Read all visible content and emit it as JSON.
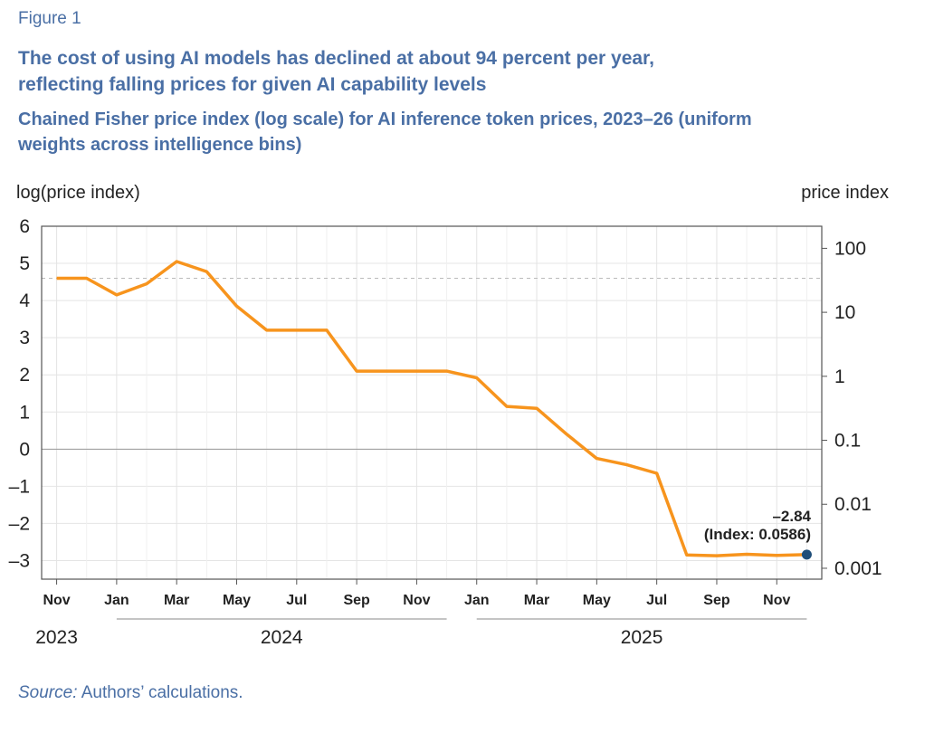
{
  "figure_label": "Figure 1",
  "title": "The cost of using AI models has declined at about 94 percent per year, reflecting falling  prices for given AI capability levels",
  "subtitle": "Chained Fisher price index (log scale) for AI inference token prices, 2023–26 (uniform weights across intelligence bins)",
  "source_label": "Source:",
  "source_text": " Authors’ calculations.",
  "colors": {
    "line": "#f7941d",
    "accent": "#4a6fa5",
    "endpoint": "#1f4e79"
  },
  "chart_data": {
    "type": "line",
    "title": "The cost of using AI models has declined at about 94 percent per year, reflecting falling  prices for given AI capability levels",
    "ylabel": "log(price index)",
    "y2label": "price index",
    "ylim": [
      -3.5,
      6
    ],
    "y_ticks": [
      "6",
      "5",
      "4",
      "3",
      "2",
      "1",
      "0",
      "–1",
      "–2",
      "–3"
    ],
    "y2_ticks": [
      "100",
      "10",
      "1",
      "0.1",
      "0.01",
      "0.001"
    ],
    "y2_tick_values": [
      4.605,
      2.303,
      0,
      -2.303,
      -4.605,
      -6.908
    ],
    "y2_note": "log scale",
    "reference_line_y": 4.6,
    "x_tick_labels": [
      "Nov",
      "Jan",
      "Mar",
      "May",
      "Jul",
      "Sep",
      "Nov",
      "Jan",
      "Mar",
      "May",
      "Jul",
      "Sep",
      "Nov"
    ],
    "x_tick_months": [
      0,
      2,
      4,
      6,
      8,
      10,
      12,
      14,
      16,
      18,
      20,
      22,
      24
    ],
    "year_labels": [
      {
        "label": "2023",
        "from": -0.5,
        "to": 0.5
      },
      {
        "label": "2024",
        "from": 2,
        "to": 13
      },
      {
        "label": "2025",
        "from": 14,
        "to": 25
      }
    ],
    "grid": true,
    "series": [
      {
        "months": [
          0,
          1,
          2,
          3,
          4,
          5,
          6,
          7,
          8,
          9,
          10,
          11,
          12,
          13,
          14,
          15,
          16,
          17,
          18,
          19,
          20,
          21,
          22,
          23,
          24,
          25
        ],
        "values": [
          4.6,
          4.6,
          4.15,
          4.45,
          5.05,
          4.78,
          3.85,
          3.2,
          3.2,
          3.2,
          2.1,
          2.1,
          2.1,
          2.1,
          1.92,
          1.15,
          1.1,
          0.4,
          -0.25,
          -0.42,
          -0.65,
          -2.85,
          -2.87,
          -2.83,
          -2.86,
          -2.84
        ]
      }
    ],
    "annotation": {
      "value": "–2.84",
      "text": "(Index: 0.0586)"
    }
  }
}
